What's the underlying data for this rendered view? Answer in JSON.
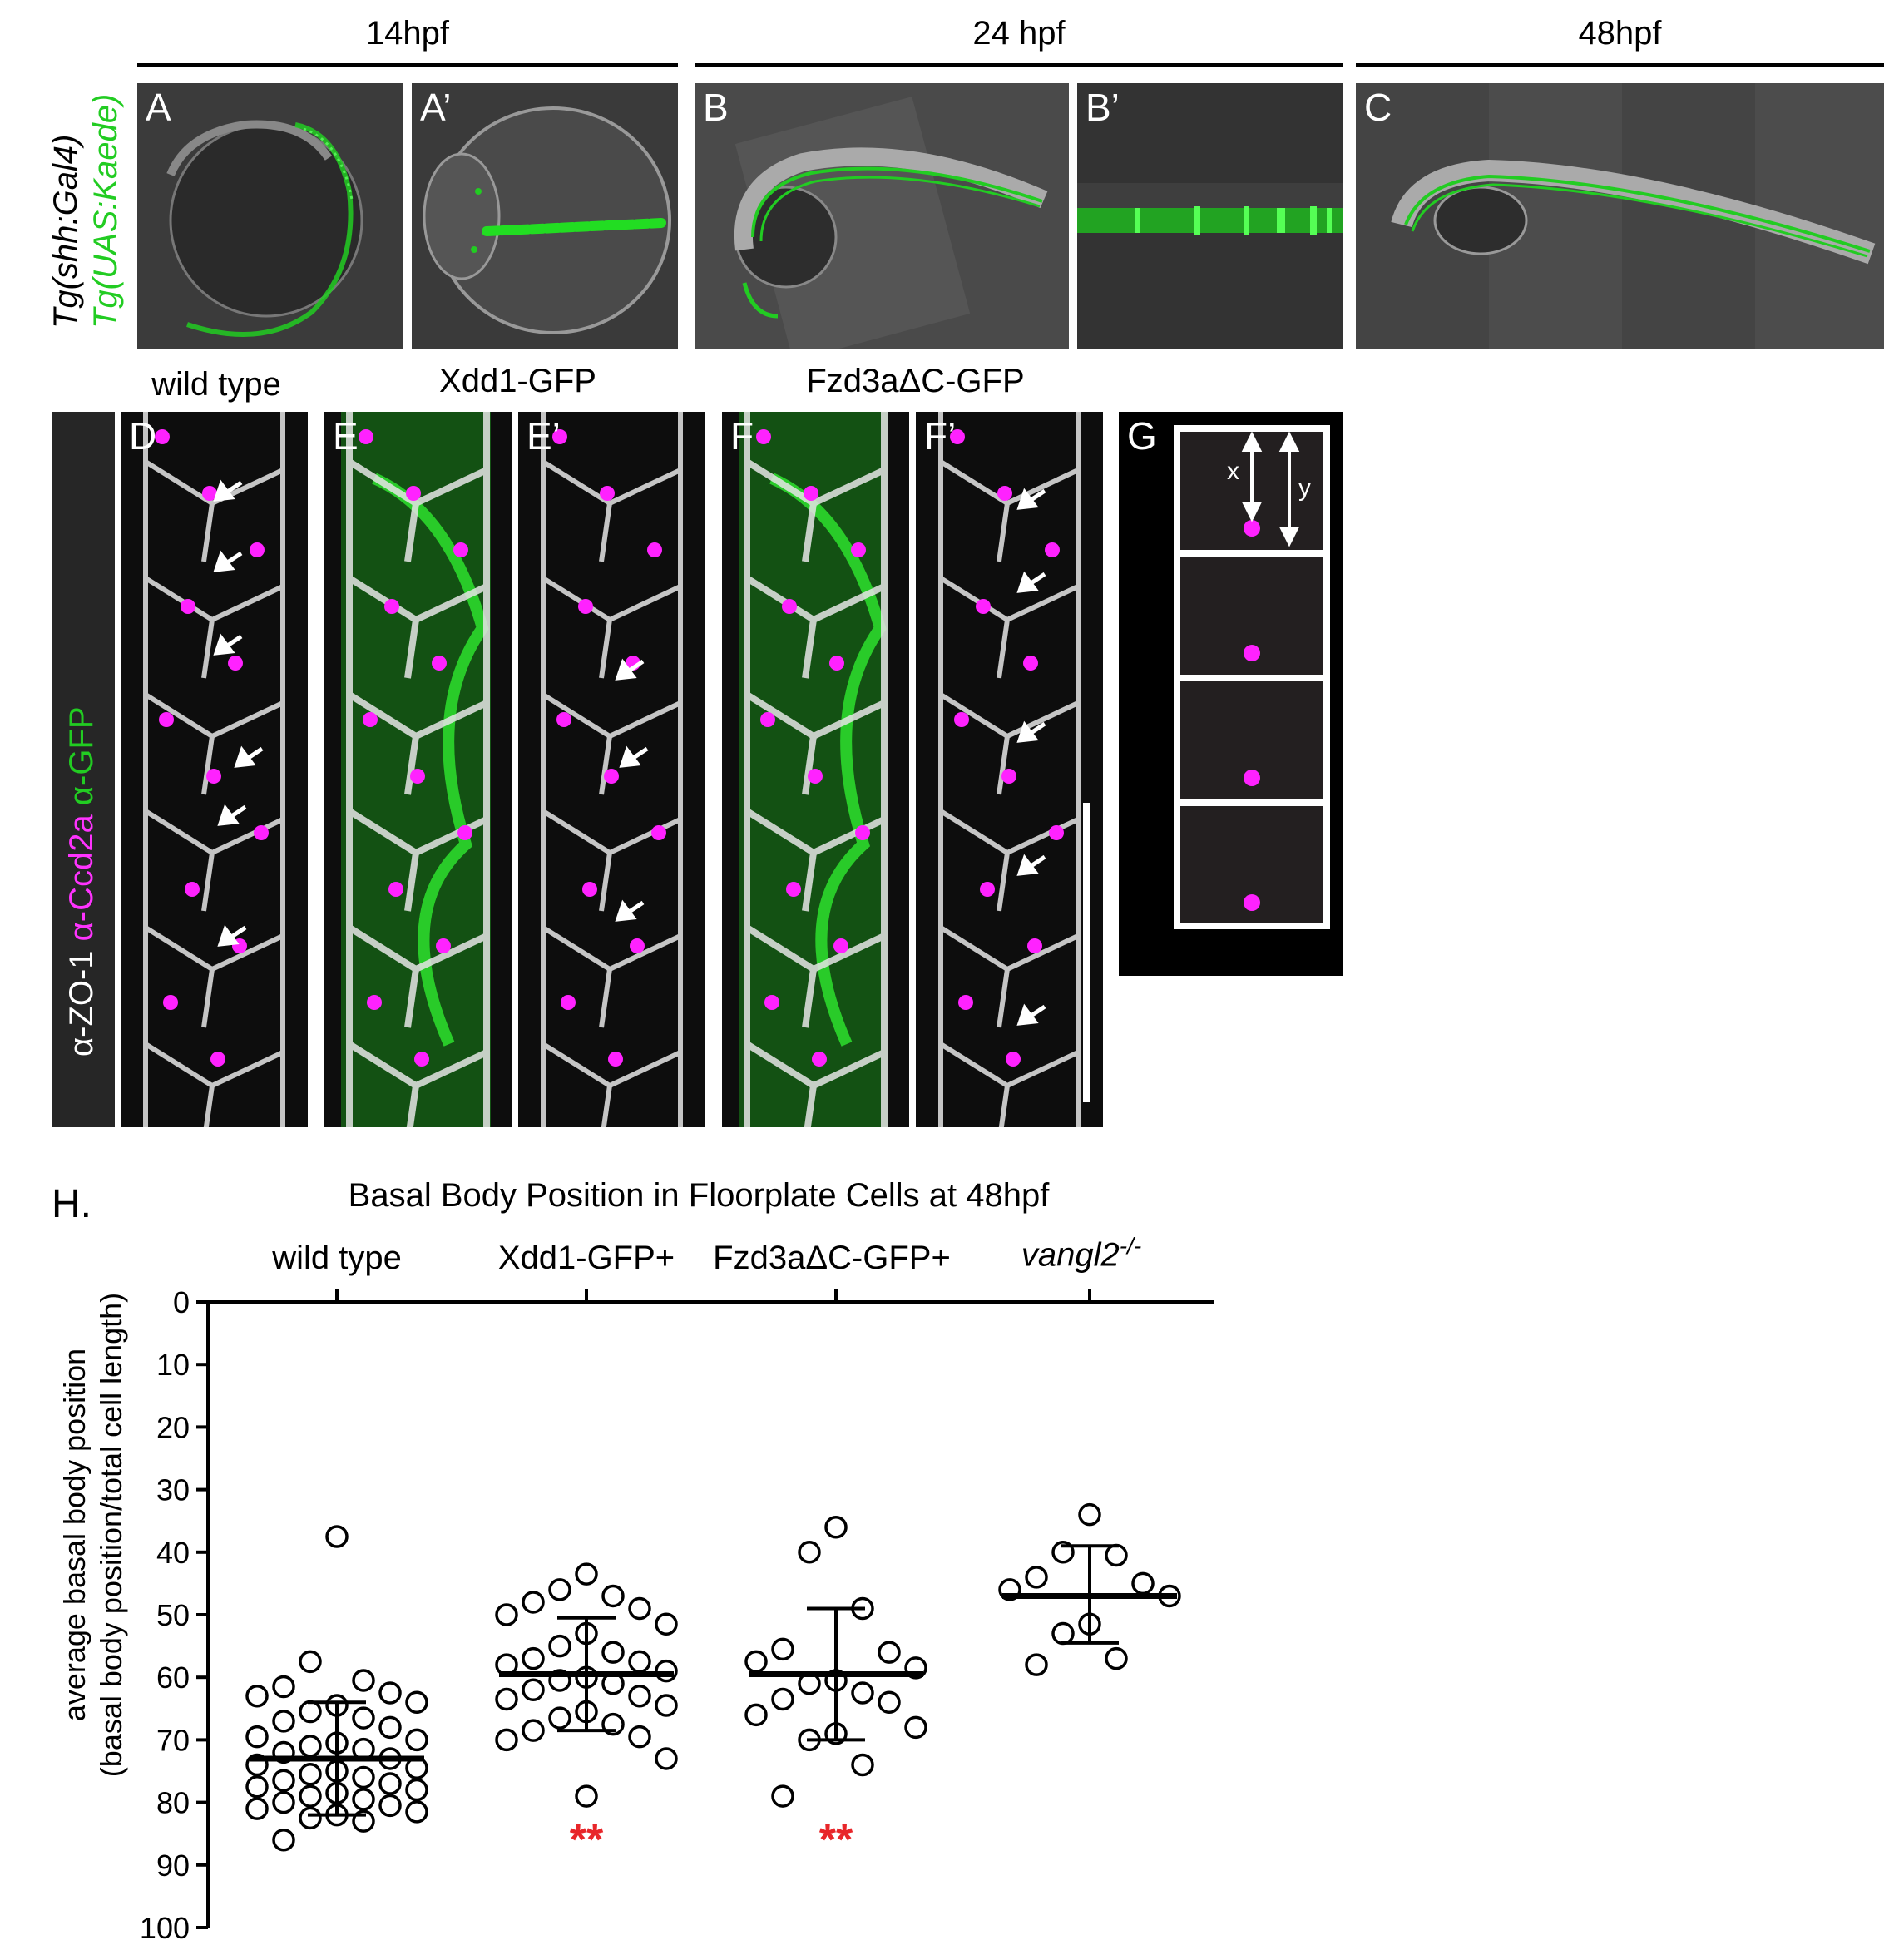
{
  "top_row": {
    "stage_headers": [
      "14hpf",
      "24 hpf",
      "48hpf"
    ],
    "side_label_line1": "Tg(shh:Gal4)",
    "side_label_line2": "Tg(UAS:Kaede)",
    "panels": [
      "A",
      "A’",
      "B",
      "B’",
      "C"
    ]
  },
  "middle_row": {
    "side_label_parts": [
      "α-ZO-1",
      "α-Ccd2a",
      "α-GFP"
    ],
    "treatments": [
      "wild type",
      "Xdd1-GFP",
      "Fzd3aΔC-GFP"
    ],
    "panels": [
      "D",
      "E",
      "E’",
      "F",
      "F’",
      "G"
    ],
    "schematic": {
      "x_label": "x",
      "y_label": "y",
      "cells": 4
    }
  },
  "colors": {
    "kaede_green": "#22cc22",
    "ccd2a_magenta": "#ff22ff",
    "zo1_white": "#ffffff",
    "significance_red": "#e8262a"
  },
  "chart": {
    "panel_label": "H.",
    "title": "Basal Body Position in Floorplate Cells at 48hpf",
    "ylabel_line1": "average basal body position",
    "ylabel_line2": "(basal body position/total cell length)",
    "group4_italic": "vangl2",
    "group4_super": "-/-",
    "significance": [
      "**",
      "**"
    ]
  },
  "chart_data": {
    "type": "scatter",
    "title": "Basal Body Position in Floorplate Cells at 48hpf",
    "ylabel": "average basal body position (basal body position/total cell length)",
    "categories": [
      "wild type",
      "Xdd1-GFP+",
      "Fzd3aΔC-GFP+",
      "vangl2-/-"
    ],
    "yticks": [
      0,
      10,
      20,
      30,
      40,
      50,
      60,
      70,
      80,
      90,
      100
    ],
    "ylim": [
      0,
      100
    ],
    "y_inverted": true,
    "series": [
      {
        "mean": 73,
        "sd_low": 64,
        "sd_high": 82,
        "points": [
          37.5,
          57.5,
          60.5,
          61.5,
          62.5,
          63,
          64,
          64.5,
          65.5,
          66.5,
          67,
          68,
          69.5,
          70,
          70.5,
          71,
          71.5,
          72,
          73,
          74,
          74.5,
          75,
          75.5,
          76,
          76.5,
          77,
          77.5,
          78,
          78.5,
          79,
          79.5,
          80,
          80.5,
          81,
          81.5,
          82,
          82.5,
          83,
          86
        ]
      },
      {
        "mean": 59.5,
        "sd_low": 50.5,
        "sd_high": 68.5,
        "points": [
          43.5,
          46,
          47,
          48,
          49,
          50,
          51.5,
          53,
          55,
          56,
          57,
          57.5,
          58,
          59,
          60,
          60.5,
          61,
          62,
          63,
          63.5,
          64.5,
          65.5,
          66.5,
          67.5,
          68.5,
          69.5,
          70,
          73,
          79
        ]
      },
      {
        "mean": 59.5,
        "sd_low": 49,
        "sd_high": 70,
        "points": [
          36,
          40,
          49,
          55.5,
          56,
          57.5,
          58.5,
          60.5,
          61,
          62.5,
          63.5,
          64,
          66,
          68,
          69,
          70,
          74,
          79
        ]
      },
      {
        "mean": 47,
        "sd_low": 39,
        "sd_high": 54.5,
        "points": [
          34,
          40,
          40.5,
          44,
          45,
          46,
          47,
          51.5,
          53,
          57,
          58
        ]
      }
    ],
    "significance": [
      "",
      "**",
      "**",
      ""
    ]
  }
}
